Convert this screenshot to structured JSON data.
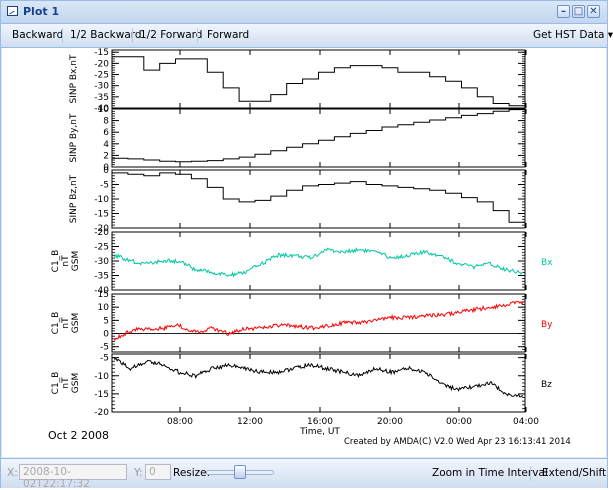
{
  "window": {
    "title": "Plot 1",
    "minimize_glyph": "–",
    "maximize_glyph": "□",
    "close_glyph": "✕"
  },
  "toolbar": {
    "backward": "Backward",
    "half_backward": "1/2 Backward",
    "half_forward": "1/2 Forward",
    "forward": "Forward",
    "get_hst": "Get HST Data",
    "get_hst_arrow": "▾"
  },
  "plot": {
    "date_label": "Oct  2 2008",
    "credit": "Created by AMDA(C) V2.0 Wed Apr 23 16:13:41 2014",
    "xlabel": "Time, UT"
  },
  "chart_data": {
    "type": "line",
    "x_ticks": [
      "08:00",
      "12:00",
      "16:00",
      "20:00",
      "00:00",
      "04:00"
    ],
    "panels": [
      {
        "ylabel": "SINP Bx,nT",
        "ylim": [
          -40,
          -14
        ],
        "ticks": [
          "-15",
          "-20",
          "-25",
          "-30",
          "-35",
          "-40"
        ],
        "tick_values": [
          -15,
          -20,
          -25,
          -30,
          -35,
          -40
        ],
        "color": "#000000",
        "legend": "",
        "style": "step",
        "values": [
          -17,
          -17,
          -23,
          -20,
          -18,
          -18,
          -24,
          -31,
          -37,
          -37,
          -34,
          -29,
          -27,
          -24,
          -22,
          -21,
          -21,
          -22,
          -24,
          -24,
          -26,
          -28,
          -31,
          -35,
          -38,
          -39
        ]
      },
      {
        "ylabel": "SINP By,nT",
        "ylim": [
          0,
          10
        ],
        "ticks": [
          "10",
          "8",
          "6",
          "4",
          "2",
          "0"
        ],
        "tick_values": [
          10,
          8,
          6,
          4,
          2,
          0
        ],
        "color": "#000000",
        "legend": "",
        "style": "step",
        "values": [
          1.5,
          1.4,
          1.2,
          1.0,
          0.9,
          1.0,
          1.1,
          1.4,
          1.7,
          2.2,
          2.8,
          3.4,
          4.0,
          4.6,
          5.2,
          5.8,
          6.3,
          6.9,
          7.3,
          7.7,
          8.1,
          8.5,
          8.9,
          9.2,
          9.6,
          9.9
        ]
      },
      {
        "ylabel": "SINP Bz,nT",
        "ylim": [
          -20,
          0
        ],
        "ticks": [
          "0",
          "-5",
          "-10",
          "-15",
          "-20"
        ],
        "tick_values": [
          0,
          -5,
          -10,
          -15,
          -20
        ],
        "color": "#000000",
        "legend": "",
        "style": "step",
        "values": [
          -1,
          -1.5,
          -2,
          -1,
          -1.5,
          -3,
          -6,
          -10,
          -11,
          -10.5,
          -9,
          -7,
          -5.5,
          -5,
          -4.5,
          -4,
          -5,
          -5.5,
          -6,
          -6.5,
          -7,
          -8,
          -9.5,
          -11,
          -14,
          -18
        ]
      },
      {
        "ylabel": "C1_B, nT, GSM",
        "ylim": [
          -40,
          -20
        ],
        "ticks": [
          "-20",
          "-25",
          "-30",
          "-35",
          "-40"
        ],
        "tick_values": [
          -20,
          -25,
          -30,
          -35,
          -40
        ],
        "color": "#00c8a0",
        "legend": "Bx",
        "style": "noisy",
        "values": [
          -28,
          -30,
          -31,
          -30,
          -30,
          -33,
          -34,
          -35,
          -34,
          -31,
          -28,
          -28,
          -29,
          -26,
          -27,
          -26,
          -27,
          -29,
          -28,
          -27,
          -28,
          -31,
          -32,
          -31,
          -33,
          -34
        ]
      },
      {
        "ylabel": "C1_B, nT, GSM",
        "ylim": [
          -7,
          15
        ],
        "ticks": [
          "15",
          "10",
          "5",
          "0",
          "-5"
        ],
        "tick_values": [
          15,
          10,
          5,
          0,
          -5
        ],
        "color": "#ff0000",
        "legend": "By",
        "style": "noisy",
        "values": [
          -2,
          1,
          2,
          2,
          3,
          0.5,
          2,
          0,
          2,
          2,
          3,
          3,
          2,
          3,
          4,
          4,
          5,
          6,
          6,
          7,
          7,
          8,
          9,
          10,
          11,
          12
        ]
      },
      {
        "ylabel": "C1_B, nT, GSM",
        "ylim": [
          -20,
          -4
        ],
        "ticks": [
          "-5",
          "-10",
          "-15",
          "-20"
        ],
        "tick_values": [
          -5,
          -10,
          -15,
          -20
        ],
        "color": "#000000",
        "legend": "Bz",
        "style": "noisy",
        "values": [
          -5,
          -8,
          -6,
          -7,
          -9,
          -10,
          -8,
          -7,
          -8,
          -9,
          -9,
          -8,
          -7,
          -8,
          -9,
          -10,
          -8,
          -9,
          -8,
          -9,
          -12,
          -14,
          -13,
          -12,
          -15,
          -16
        ]
      }
    ]
  },
  "status": {
    "x_label": "X:",
    "x_value": "2008-10-02T22:17:32",
    "y_label": "Y:",
    "y_value": "0",
    "resize_label": "Resize:",
    "zoom": "Zoom in Time Interval",
    "extend": "Extend/Shift"
  }
}
